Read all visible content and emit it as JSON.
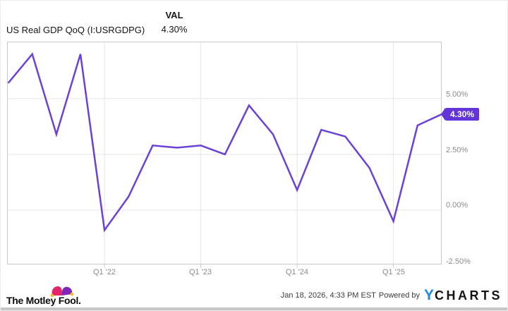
{
  "header": {
    "title": "US Real GDP QoQ (I:USRGDPG)",
    "val_label": "VAL",
    "val_value": "4.30%"
  },
  "chart_data": {
    "type": "line",
    "title": "US Real GDP QoQ (I:USRGDPG)",
    "series": [
      {
        "name": "US Real GDP QoQ",
        "values": [
          5.7,
          7.0,
          3.4,
          7.0,
          -0.9,
          0.6,
          2.9,
          2.8,
          2.9,
          2.5,
          4.7,
          3.4,
          0.9,
          3.6,
          3.3,
          1.9,
          -0.5,
          3.8,
          4.3
        ]
      }
    ],
    "x": [
      "Q1 '21",
      "Q2 '21",
      "Q3 '21",
      "Q4 '21",
      "Q1 '22",
      "Q2 '22",
      "Q3 '22",
      "Q4 '22",
      "Q1 '23",
      "Q2 '23",
      "Q3 '23",
      "Q4 '23",
      "Q1 '24",
      "Q2 '24",
      "Q3 '24",
      "Q4 '24",
      "Q1 '25",
      "Q2 '25",
      "Q3 '25"
    ],
    "unit": "%",
    "x_tick_labels": [
      "Q1 '22",
      "Q1 '23",
      "Q1 '24",
      "Q1 '25"
    ],
    "x_tick_indices": [
      4,
      8,
      12,
      16
    ],
    "y_tick_labels": [
      "5.00%",
      "2.50%",
      "0.00%",
      "-2.50%"
    ],
    "y_tick_values": [
      5.0,
      2.5,
      0.0,
      -2.5
    ],
    "ylim": [
      -2.5,
      7.5
    ],
    "grid": true,
    "legend_position": "none",
    "line_color": "#6b41d8",
    "badge_color": "#6234d9",
    "grid_color": "#e6e6e6",
    "axis_color": "#c9c9c9",
    "last_value_label": "4.30%"
  },
  "footer": {
    "brand": "The Motley Fool.",
    "timestamp": "Jan 18, 2026, 4:33 PM EST",
    "powered_by": "Powered by",
    "ycharts_y": "Y",
    "ycharts_rest": "CHARTS",
    "ycharts_blue": "#1e88e5",
    "fool_pink": "#e3256b",
    "fool_purple": "#7d26b8",
    "fool_yellow": "#ffb81c"
  }
}
